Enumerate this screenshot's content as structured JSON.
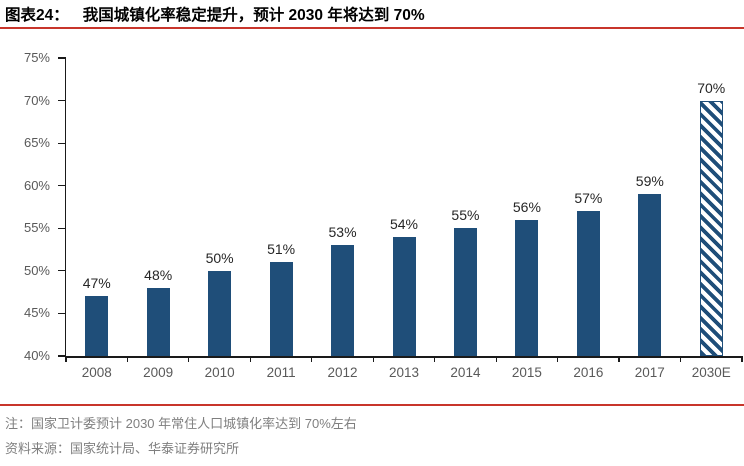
{
  "header": {
    "figure_label": "图表24：",
    "title": "我国城镇化率稳定提升，预计 2030 年将达到 70%"
  },
  "chart_data": {
    "type": "bar",
    "title": "我国城镇化率稳定提升，预计 2030 年将达到 70%",
    "categories": [
      "2008",
      "2009",
      "2010",
      "2011",
      "2012",
      "2013",
      "2014",
      "2015",
      "2016",
      "2017",
      "2030E"
    ],
    "values": [
      47,
      48,
      50,
      51,
      53,
      54,
      55,
      56,
      57,
      59,
      70
    ],
    "value_labels": [
      "47%",
      "48%",
      "50%",
      "51%",
      "53%",
      "54%",
      "55%",
      "56%",
      "57%",
      "59%",
      "70%"
    ],
    "forecast_index": 10,
    "forecast_style": "diagonal-hatch",
    "xlabel": "",
    "ylabel": "",
    "ylim": [
      40,
      75
    ],
    "ytick_step": 5,
    "ytick_labels": [
      "40%",
      "45%",
      "50%",
      "55%",
      "60%",
      "65%",
      "70%",
      "75%"
    ],
    "grid": false,
    "legend": "none",
    "bar_color": "#1F4E79"
  },
  "footer": {
    "note": "注：国家卫计委预计 2030 年常住人口城镇化率达到 70%左右",
    "source": "资料来源：国家统计局、华泰证券研究所"
  },
  "colors": {
    "bar_blue": "#1F4E79",
    "accent_red": "#C8352B",
    "axis_text": "#595959",
    "value_label_text": "#262626",
    "note_text": "#7F7F7F",
    "axis_line": "#1A1A1A"
  }
}
